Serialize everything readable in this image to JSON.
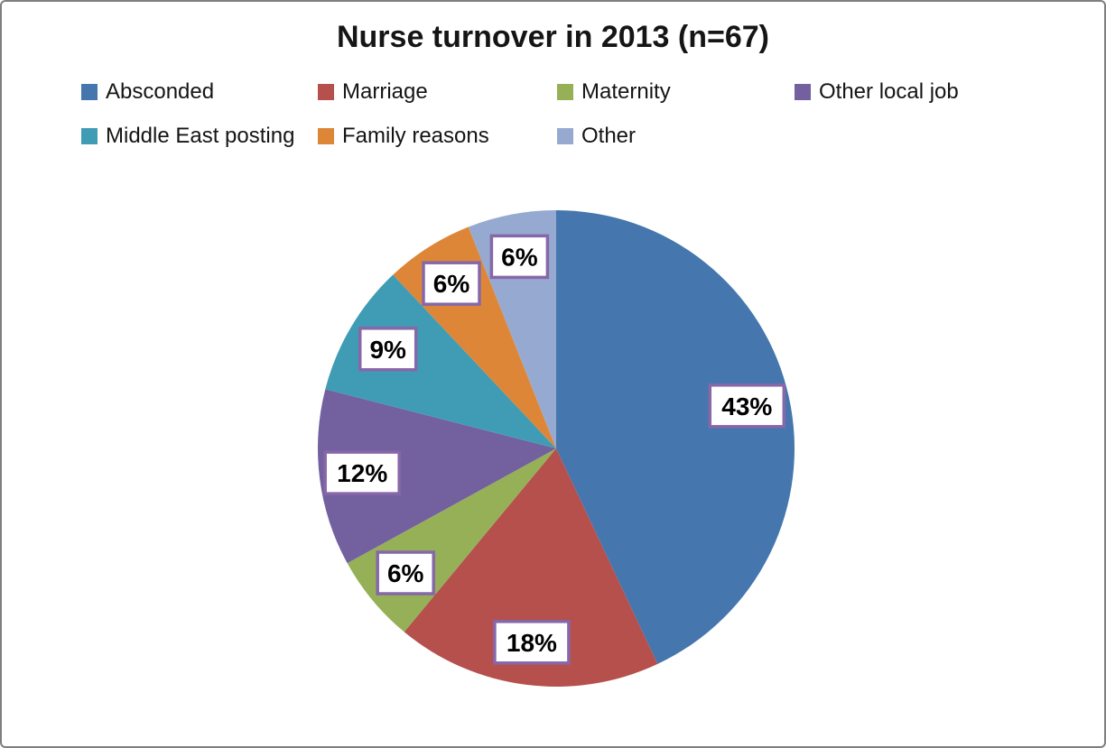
{
  "chart_data": {
    "type": "pie",
    "title": "Nurse turnover in 2013 (n=67)",
    "legend_position": "top",
    "start_angle_deg": 0,
    "direction": "clockwise",
    "slices": [
      {
        "label": "Absconded",
        "value_pct": 43,
        "data_label": "43%",
        "color": "#4576AD"
      },
      {
        "label": "Marriage",
        "value_pct": 18,
        "data_label": "18%",
        "color": "#B5504D"
      },
      {
        "label": "Maternity",
        "value_pct": 6,
        "data_label": "6%",
        "color": "#95B056"
      },
      {
        "label": "Other local job",
        "value_pct": 12,
        "data_label": "12%",
        "color": "#73609F"
      },
      {
        "label": "Middle East posting",
        "value_pct": 9,
        "data_label": "9%",
        "color": "#3F9CB4"
      },
      {
        "label": "Family reasons",
        "value_pct": 6,
        "data_label": "6%",
        "color": "#DD8638"
      },
      {
        "label": "Other",
        "value_pct": 6,
        "data_label": "6%",
        "color": "#96AAD1"
      }
    ],
    "data_label_style": {
      "box_fill": "#FFFFFF",
      "box_border_color": "#8668A9",
      "text_color": "#000000"
    },
    "frame_border_color": "#7F7F7F"
  }
}
